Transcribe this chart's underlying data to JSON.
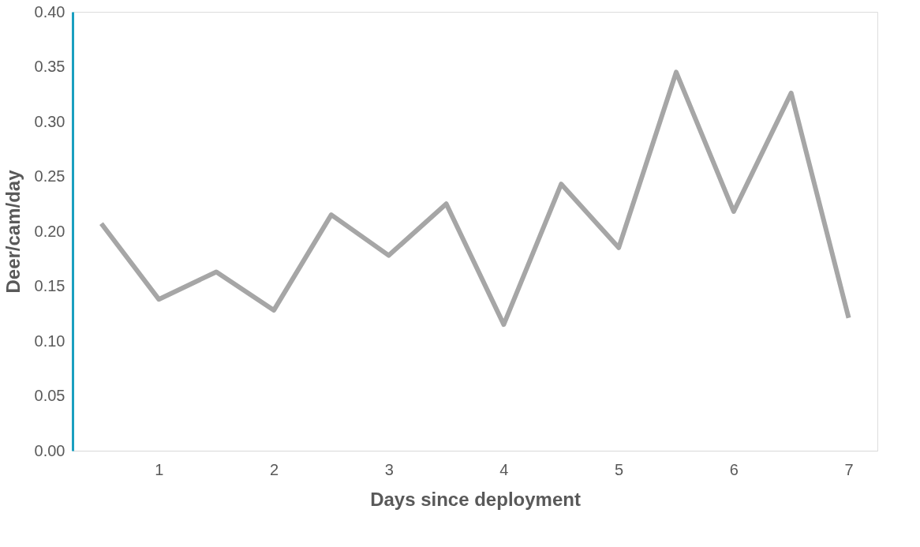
{
  "chart_data": {
    "type": "line",
    "xlabel": "Days since deployment",
    "ylabel": "Deer/cam/day",
    "categories": [
      null,
      "1",
      null,
      "2",
      null,
      "3",
      null,
      "4",
      null,
      "5",
      null,
      "6",
      null,
      "7"
    ],
    "values": [
      0.207,
      0.138,
      0.163,
      0.128,
      0.215,
      0.178,
      0.225,
      0.115,
      0.243,
      0.185,
      0.345,
      0.218,
      0.326,
      0.121
    ],
    "color": "#a6a6a6",
    "ylim": [
      0,
      0.4
    ],
    "yticks": [
      {
        "value": 0,
        "label": "0.00"
      },
      {
        "value": 0.05,
        "label": "0.05"
      },
      {
        "value": 0.1,
        "label": "0.10"
      },
      {
        "value": 0.15,
        "label": "0.15"
      },
      {
        "value": 0.2,
        "label": "0.20"
      },
      {
        "value": 0.25,
        "label": "0.25"
      },
      {
        "value": 0.3,
        "label": "0.30"
      },
      {
        "value": 0.35,
        "label": "0.35"
      },
      {
        "value": 0.4,
        "label": "0.40"
      }
    ],
    "grid": false
  }
}
